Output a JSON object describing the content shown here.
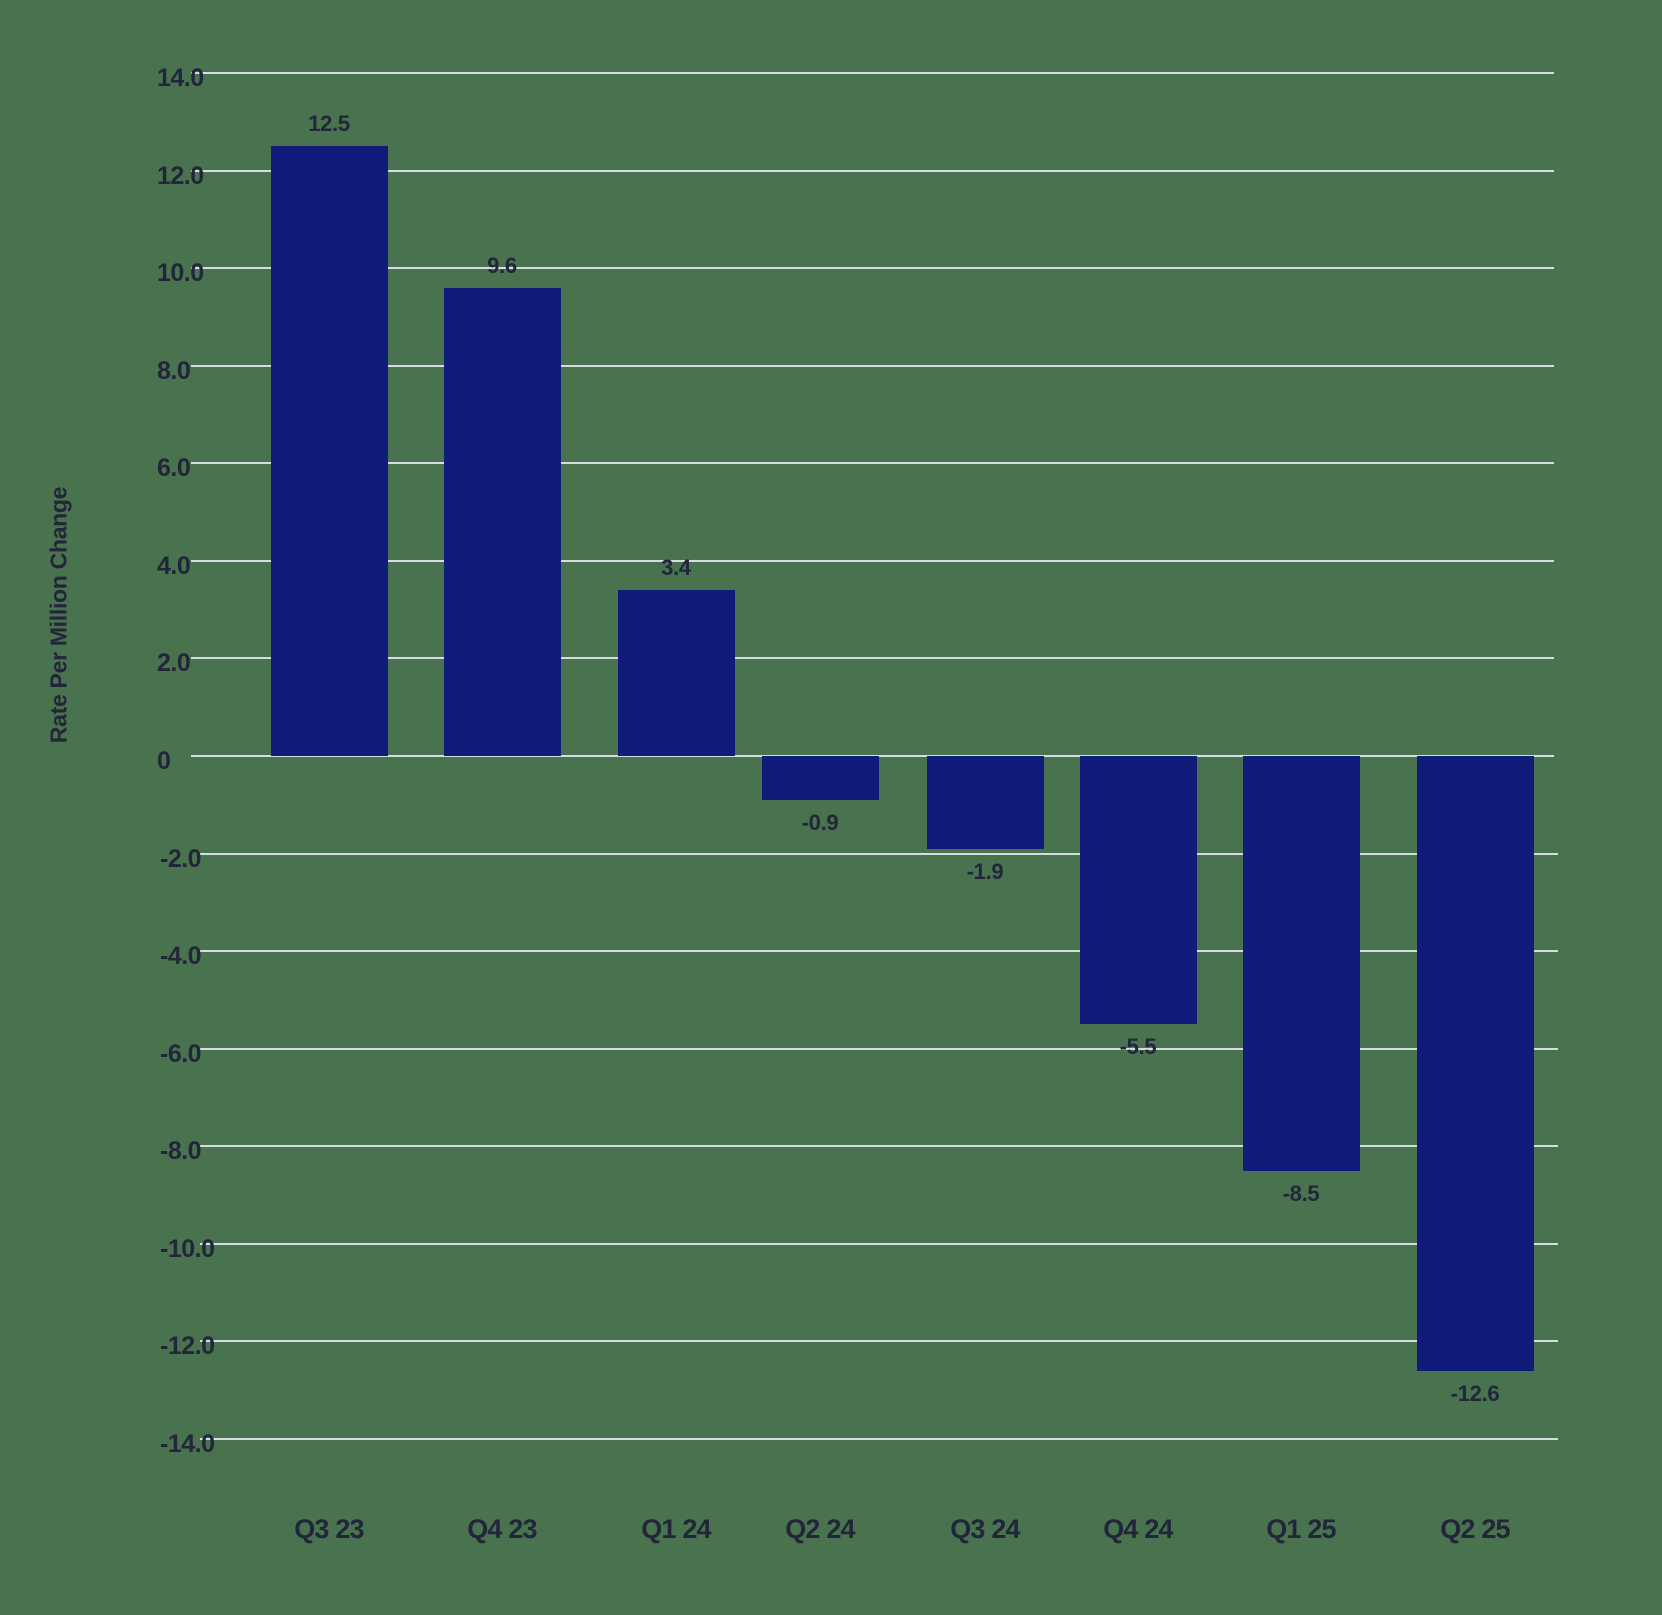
{
  "chart_data": {
    "type": "bar",
    "title": "",
    "xlabel": "",
    "ylabel": "Rate Per Million Change",
    "categories": [
      "Q3 23",
      "Q4 23",
      "Q1 24",
      "Q2 24",
      "Q3 24",
      "Q4 24",
      "Q1 25",
      "Q2 25"
    ],
    "values": [
      12.5,
      9.6,
      3.4,
      -0.9,
      -1.9,
      -5.5,
      -8.5,
      -12.6
    ],
    "value_labels": [
      "12.5",
      "9.6",
      "3.4",
      "-0.9",
      "-1.9",
      "-5.5",
      "-8.5",
      "-12.6"
    ],
    "ylim": [
      -14,
      14
    ],
    "yticks": [
      14,
      12,
      10,
      8,
      6,
      4,
      2,
      0,
      -2,
      -4,
      -6,
      -8,
      -10,
      -12,
      -14
    ],
    "ytick_labels": [
      "14.0",
      "12.0",
      "10.0",
      "8.0",
      "6.0",
      "4.0",
      "2.0",
      "0",
      "-2.0",
      "-4.0",
      "-6.0",
      "-8.0",
      "-10.0",
      "-12.0",
      "-14.0"
    ],
    "grid": true,
    "legend": null,
    "colors": {
      "bar": "#111c7a",
      "background": "#48734e",
      "grid": "#d6dde0",
      "text": "#23253a"
    }
  }
}
